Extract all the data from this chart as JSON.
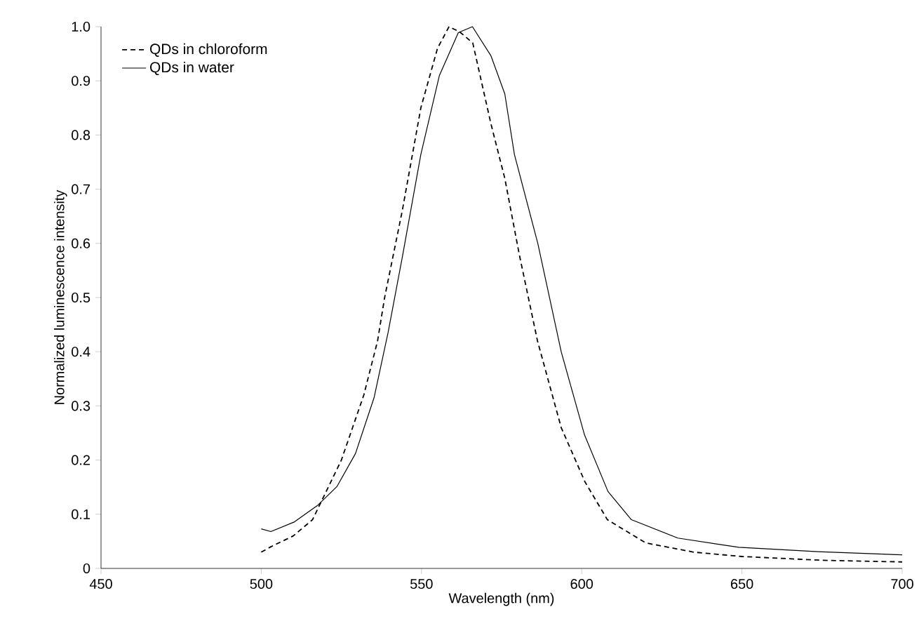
{
  "chart_data": {
    "type": "line",
    "xlabel": "Wavelength (nm)",
    "ylabel": "Normalized luminescence intensity",
    "xlim": [
      450,
      700
    ],
    "xticks": [
      450,
      500,
      550,
      600,
      650,
      700
    ],
    "ylim": [
      0,
      1
    ],
    "yticks": [
      0,
      0.1,
      0.2,
      0.3,
      0.4,
      0.5,
      0.6,
      0.7,
      0.8,
      0.9,
      {
        "value": 1,
        "label": "1.0"
      }
    ],
    "legend": "top left",
    "grid": false,
    "marker": "none",
    "series": [
      {
        "name": "QDs in chloroform",
        "color": "#000000",
        "line_style": "dashed",
        "x": [
          500,
          503,
          510,
          516,
          525,
          532,
          536.3,
          538.5,
          544,
          549.8,
          555,
          558.6,
          562,
          566,
          571.7,
          576,
          580.5,
          586.2,
          593.6,
          601,
          608,
          620,
          635,
          650,
          675,
          700
        ],
        "values": [
          0.03,
          0.04,
          0.06,
          0.09,
          0.2,
          0.32,
          0.42,
          0.5,
          0.66,
          0.85,
          0.96,
          1.0,
          0.99,
          0.97,
          0.82,
          0.72,
          0.58,
          0.42,
          0.26,
          0.16,
          0.09,
          0.047,
          0.03,
          0.022,
          0.015,
          0.012
        ]
      },
      {
        "name": "QDs in water",
        "color": "#000000",
        "line_style": "solid",
        "x": [
          500,
          503,
          510.4,
          517.7,
          523.6,
          529.4,
          535.2,
          539.6,
          544,
          549.8,
          555.6,
          561.5,
          565.9,
          571.7,
          576,
          579,
          586.3,
          593.6,
          600.9,
          608.2,
          615.5,
          630,
          649,
          673.7,
          700
        ],
        "values": [
          0.073,
          0.068,
          0.086,
          0.117,
          0.151,
          0.212,
          0.315,
          0.436,
          0.574,
          0.764,
          0.91,
          0.989,
          1.0,
          0.946,
          0.876,
          0.764,
          0.6,
          0.4,
          0.246,
          0.142,
          0.09,
          0.056,
          0.039,
          0.031,
          0.025
        ]
      }
    ]
  }
}
